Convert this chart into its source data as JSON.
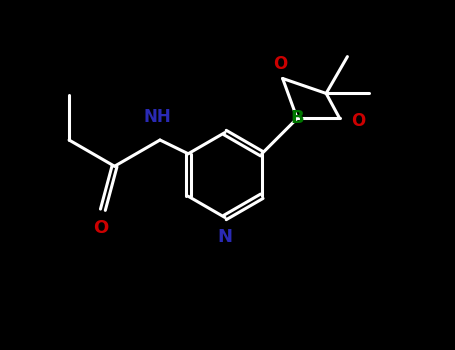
{
  "background_color": "#000000",
  "bond_color": "#ffffff",
  "NH_color": "#2a2ab5",
  "O_color": "#cc0000",
  "B_color": "#007700",
  "N_pyridine_color": "#2a2ab5",
  "C_color": "#808080",
  "line_width": 2.2,
  "doff": 0.05,
  "figsize": [
    4.55,
    3.5
  ],
  "dpi": 100,
  "xlim": [
    0,
    9.1
  ],
  "ylim": [
    0,
    7.0
  ]
}
